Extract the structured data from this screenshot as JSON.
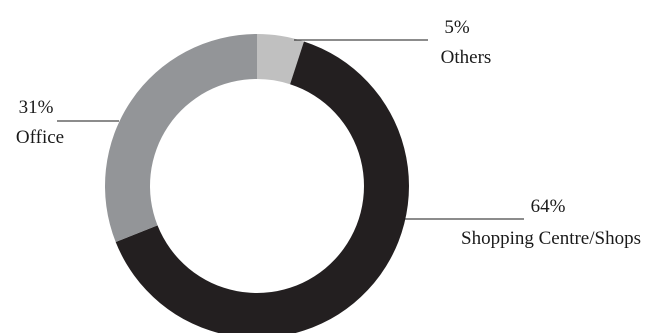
{
  "chart_data": {
    "type": "pie",
    "variant": "donut",
    "title": "",
    "start": "top",
    "direction": "clockwise",
    "slices": [
      {
        "label": "Others",
        "value": 5,
        "value_label": "5%",
        "color": "#c0c0c0"
      },
      {
        "label": "Shopping Centre/Shops",
        "value": 64,
        "value_label": "64%",
        "color": "#231f20"
      },
      {
        "label": "Office",
        "value": 31,
        "value_label": "31%",
        "color": "#939598"
      }
    ]
  }
}
